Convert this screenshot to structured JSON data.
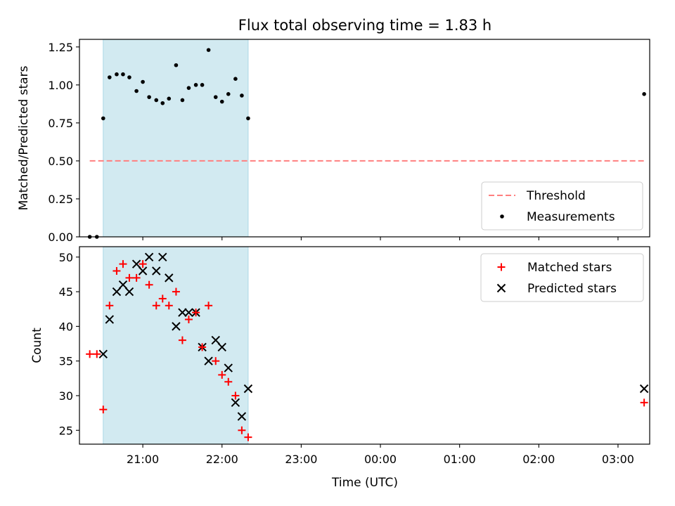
{
  "figure": {
    "title": "Flux total observing time = 1.83 h"
  },
  "colors": {
    "shade": "#add8e6",
    "threshold": "#ff7f7f",
    "measurement": "#000000",
    "matched": "#ff0000",
    "predicted": "#000000"
  },
  "chart_data": [
    {
      "type": "scatter",
      "panel": "top",
      "title": "Flux total observing time = 1.83 h",
      "xlabel": "",
      "ylabel": "Matched/Predicted stars",
      "x_unit": "hours since 20:00 UTC",
      "xlim": [
        0.2,
        7.4
      ],
      "ylim": [
        0.0,
        1.3
      ],
      "yticks": [
        "0.00",
        "0.25",
        "0.50",
        "0.75",
        "1.00",
        "1.25"
      ],
      "shaded_region": {
        "x_start": 0.5,
        "x_end": 2.33
      },
      "threshold": {
        "name": "Threshold",
        "value": 0.5,
        "x_start": 0.33,
        "x_end": 7.33
      },
      "legend": {
        "placement": "lower-right",
        "entries": [
          "Threshold",
          "Measurements"
        ]
      },
      "series": [
        {
          "name": "Measurements",
          "marker": "dot",
          "x": [
            0.33,
            0.42,
            0.5,
            0.58,
            0.67,
            0.75,
            0.83,
            0.92,
            1.0,
            1.08,
            1.17,
            1.25,
            1.33,
            1.42,
            1.5,
            1.58,
            1.67,
            1.75,
            1.83,
            1.92,
            2.0,
            2.08,
            2.17,
            2.25,
            2.33,
            7.33
          ],
          "y": [
            0.0,
            0.0,
            0.78,
            1.05,
            1.07,
            1.07,
            1.05,
            0.96,
            1.02,
            0.92,
            0.9,
            0.88,
            0.91,
            1.13,
            0.9,
            0.98,
            1.0,
            1.0,
            1.23,
            0.92,
            0.89,
            0.94,
            1.04,
            0.93,
            0.78,
            0.94
          ]
        }
      ]
    },
    {
      "type": "scatter",
      "panel": "bottom",
      "title": "",
      "xlabel": "Time (UTC)",
      "ylabel": "Count",
      "x_unit": "hours since 20:00 UTC",
      "xlim": [
        0.2,
        7.4
      ],
      "ylim": [
        23,
        51.5
      ],
      "yticks": [
        "25",
        "30",
        "35",
        "40",
        "45",
        "50"
      ],
      "xticks": [
        "21:00",
        "22:00",
        "23:00",
        "00:00",
        "01:00",
        "02:00",
        "03:00"
      ],
      "shaded_region": {
        "x_start": 0.5,
        "x_end": 2.33
      },
      "legend": {
        "placement": "upper-right",
        "entries": [
          "Matched stars",
          "Predicted stars"
        ]
      },
      "series": [
        {
          "name": "Matched stars",
          "marker": "plus",
          "x": [
            0.33,
            0.42,
            0.5,
            0.58,
            0.67,
            0.75,
            0.83,
            0.92,
            1.0,
            1.08,
            1.17,
            1.25,
            1.33,
            1.42,
            1.5,
            1.58,
            1.67,
            1.75,
            1.83,
            1.92,
            2.0,
            2.08,
            2.17,
            2.25,
            2.33,
            7.33
          ],
          "y": [
            36,
            36,
            28,
            43,
            48,
            49,
            47,
            47,
            49,
            46,
            43,
            44,
            43,
            45,
            38,
            41,
            42,
            37,
            43,
            35,
            33,
            32,
            30,
            25,
            24,
            29
          ]
        },
        {
          "name": "Predicted stars",
          "marker": "x",
          "x": [
            0.5,
            0.58,
            0.67,
            0.75,
            0.83,
            0.92,
            1.0,
            1.08,
            1.17,
            1.25,
            1.33,
            1.42,
            1.5,
            1.58,
            1.67,
            1.75,
            1.83,
            1.92,
            2.0,
            2.08,
            2.17,
            2.25,
            2.33,
            7.33
          ],
          "y": [
            36,
            41,
            45,
            46,
            45,
            49,
            48,
            50,
            48,
            50,
            47,
            40,
            42,
            42,
            42,
            37,
            35,
            38,
            37,
            34,
            29,
            27,
            31,
            31
          ]
        }
      ]
    }
  ]
}
